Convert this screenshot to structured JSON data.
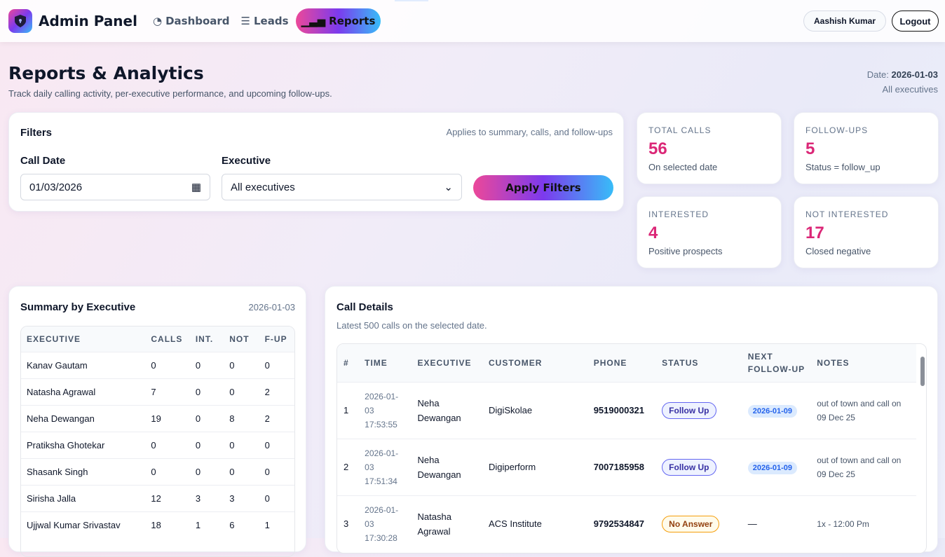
{
  "nav": {
    "brand": "Admin Panel",
    "items": [
      {
        "label": "Dashboard"
      },
      {
        "label": "Leads"
      },
      {
        "label": "Reports"
      }
    ],
    "user": "Aashish Kumar",
    "logout": "Logout"
  },
  "header": {
    "title": "Reports & Analytics",
    "subtitle": "Track daily calling activity, per-executive performance, and upcoming follow-ups.",
    "date_label": "Date:",
    "date": "2026-01-03",
    "scope": "All executives"
  },
  "filters": {
    "title": "Filters",
    "note": "Applies to summary, calls, and follow-ups",
    "date_label": "Call Date",
    "date_value": "01/03/2026",
    "exec_label": "Executive",
    "exec_value": "All executives",
    "apply": "Apply Filters"
  },
  "stats": [
    {
      "title": "TOTAL CALLS",
      "value": "56",
      "desc": "On selected date"
    },
    {
      "title": "FOLLOW-UPS",
      "value": "5",
      "desc": "Status = follow_up"
    },
    {
      "title": "INTERESTED",
      "value": "4",
      "desc": "Positive prospects"
    },
    {
      "title": "NOT INTERESTED",
      "value": "17",
      "desc": "Closed negative"
    }
  ],
  "summary": {
    "title": "Summary by Executive",
    "date": "2026-01-03",
    "columns": [
      "EXECUTIVE",
      "CALLS",
      "INT.",
      "NOT",
      "F-UP"
    ],
    "rows": [
      [
        "Kanav Gautam",
        "0",
        "0",
        "0",
        "0"
      ],
      [
        "Natasha Agrawal",
        "7",
        "0",
        "0",
        "2"
      ],
      [
        "Neha Dewangan",
        "19",
        "0",
        "8",
        "2"
      ],
      [
        "Pratiksha Ghotekar",
        "0",
        "0",
        "0",
        "0"
      ],
      [
        "Shasank Singh",
        "0",
        "0",
        "0",
        "0"
      ],
      [
        "Sirisha Jalla",
        "12",
        "3",
        "3",
        "0"
      ],
      [
        "Ujjwal Kumar Srivastav",
        "18",
        "1",
        "6",
        "1"
      ]
    ]
  },
  "calls": {
    "title": "Call Details",
    "subtitle": "Latest 500 calls on the selected date.",
    "columns": [
      "#",
      "TIME",
      "EXECUTIVE",
      "CUSTOMER",
      "PHONE",
      "STATUS",
      "NEXT FOLLOW-UP",
      "NOTES"
    ],
    "rows": [
      {
        "n": "1",
        "date": "2026-01-",
        "date2": "03",
        "time": "17:53:55",
        "exec": "Neha Dewangan",
        "customer": "DigiSkolae",
        "phone": "9519000321",
        "status": "Follow Up",
        "kind": "fu",
        "next": "2026-01-09",
        "notes": "out of town and call on 09 Dec 25"
      },
      {
        "n": "2",
        "date": "2026-01-",
        "date2": "03",
        "time": "17:51:34",
        "exec": "Neha Dewangan",
        "customer": "Digiperform",
        "phone": "7007185958",
        "status": "Follow Up",
        "kind": "fu",
        "next": "2026-01-09",
        "notes": "out of town and call on 09 Dec 25"
      },
      {
        "n": "3",
        "date": "2026-01-",
        "date2": "03",
        "time": "17:30:28",
        "exec": "Natasha Agrawal",
        "customer": "ACS Institute",
        "phone": "9792534847",
        "status": "No Answer",
        "kind": "na",
        "next": "—",
        "notes": "1x - 12:00 Pm"
      }
    ]
  },
  "colors": {
    "accent": "#db2777",
    "gradient": [
      "#ec4899",
      "#7c3aed",
      "#38bdf8"
    ]
  }
}
